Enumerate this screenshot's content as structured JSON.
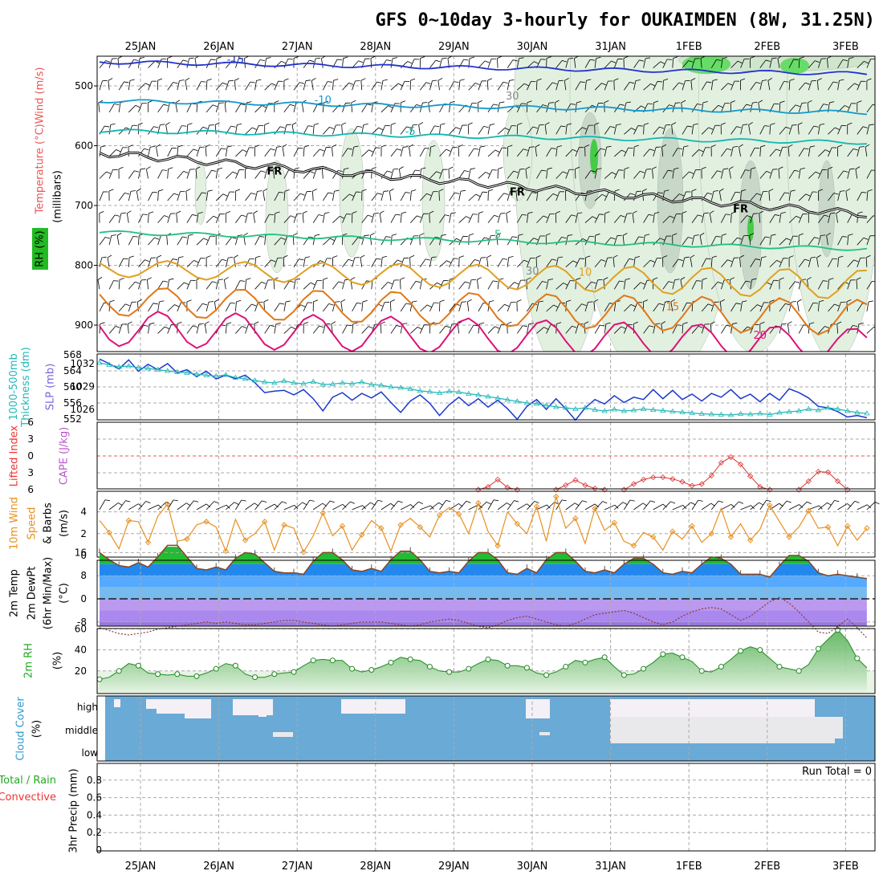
{
  "chart_data": {
    "type": "meteogram",
    "title": "GFS 0~10day 3-hourly for OUKAIMDEN (8W, 31.25N)",
    "dates": [
      "25JAN",
      "26JAN",
      "27JAN",
      "28JAN",
      "29JAN",
      "30JAN",
      "31JAN",
      "1FEB",
      "2FEB",
      "3FEB"
    ],
    "panels": [
      {
        "id": "upper_air",
        "ylabel": [
          "RH (%)",
          "Temperature (°C)",
          "Wind (m/s)",
          "(millibars)"
        ],
        "ylabel_colors": [
          "#22bb22",
          "#ee5555",
          "#000000",
          "#000000"
        ],
        "y_ticks": [
          "500",
          "600",
          "700",
          "800",
          "900"
        ],
        "freezing_label": "FR",
        "isotherms": [
          {
            "label": "-15",
            "color": "#2233cc"
          },
          {
            "label": "-10",
            "color": "#1199cc"
          },
          {
            "label": "-5",
            "color": "#11b7b0"
          },
          {
            "label": "5",
            "color": "#22c080"
          },
          {
            "label": "10",
            "color": "#e0a020"
          },
          {
            "label": "15",
            "color": "#e07818"
          },
          {
            "label": "20",
            "color": "#dd1177"
          }
        ],
        "rh_contour_label": "30"
      },
      {
        "id": "slp_thickness",
        "ylabel": [
          "1000-500mb",
          "Thickness (dm)",
          "SLP (mb)"
        ],
        "thickness_ticks": [
          "568",
          "564",
          "560",
          "556",
          "552"
        ],
        "slp_ticks": [
          "1032",
          "1029",
          "1026"
        ],
        "series": [
          {
            "name": "SLP",
            "color": "#1a3acc",
            "values": [
              1032.6,
              1032.0,
              1031.3,
              1032.5,
              1031.0,
              1031.9,
              1031.2,
              1032.0,
              1030.8,
              1031.2,
              1030.3,
              1031.0,
              1030.0,
              1030.5,
              1030.0,
              1030.5,
              1029.5,
              1028.2,
              1028.4,
              1028.5,
              1027.9,
              1028.6,
              1027.4,
              1025.8,
              1027.6,
              1028.2,
              1027.2,
              1028.1,
              1027.5,
              1028.3,
              1026.9,
              1025.6,
              1027.1,
              1027.9,
              1026.8,
              1025.2,
              1026.6,
              1027.6,
              1026.5,
              1027.4,
              1026.3,
              1027.2,
              1026.1,
              1024.7,
              1026.4,
              1027.3,
              1026.0,
              1027.4,
              1026.1,
              1024.6,
              1026.2,
              1027.3,
              1026.7,
              1027.8,
              1026.9,
              1027.6,
              1027.3,
              1028.6,
              1027.4,
              1028.5,
              1027.3,
              1028.0,
              1027.1,
              1028.1,
              1027.6,
              1028.6,
              1027.4,
              1028.0,
              1027.0,
              1028.1,
              1027.2,
              1028.7,
              1028.2,
              1027.5,
              1026.4,
              1026.2,
              1025.7,
              1025.0,
              1025.2,
              1024.9
            ]
          },
          {
            "name": "Thickness",
            "color": "#22b8b8",
            "values": [
              566.0,
              565.5,
              565.0,
              565.2,
              564.8,
              564.6,
              564.3,
              564.0,
              563.7,
              563.5,
              563.2,
              562.9,
              562.7,
              563.0,
              562.3,
              562.0,
              561.6,
              561.2,
              561.0,
              561.5,
              561.0,
              560.8,
              561.3,
              560.6,
              560.7,
              561.0,
              560.8,
              561.2,
              560.6,
              560.4,
              560.0,
              559.8,
              559.5,
              559.0,
              558.8,
              558.5,
              558.9,
              558.7,
              558.3,
              558.0,
              557.6,
              557.2,
              556.8,
              556.4,
              556.0,
              555.8,
              555.4,
              555.0,
              554.8,
              554.5,
              554.8,
              554.3,
              554.0,
              554.4,
              554.0,
              554.2,
              554.5,
              554.3,
              554.1,
              553.9,
              553.7,
              553.5,
              553.3,
              553.2,
              553.1,
              553.0,
              553.3,
              553.2,
              553.4,
              553.1,
              553.6,
              553.8,
              554.0,
              554.5,
              554.2,
              554.8,
              554.5,
              554.0,
              553.6,
              553.4
            ]
          }
        ]
      },
      {
        "id": "instability",
        "ylabel": [
          "Lifted Index",
          "CAPE (J/kg)"
        ],
        "ylabel_colors": [
          "#ee3333",
          "#bb55cc"
        ],
        "li_ticks": [
          "-6",
          "-3",
          "0",
          "3",
          "6"
        ],
        "series": [
          {
            "name": "Lifted Index",
            "color": "#dd3333",
            "segments": [
              {
                "start_index": 39,
                "values": [
                  6.0,
                  5.5,
                  4.2,
                  5.6,
                  6.0
                ]
              },
              {
                "start_index": 47,
                "values": [
                  6.0,
                  5.2,
                  4.3,
                  5.2,
                  5.8,
                  6.0
                ]
              },
              {
                "start_index": 54,
                "values": [
                  6.0,
                  5.0,
                  4.2,
                  3.8,
                  3.8,
                  4.1,
                  4.6,
                  5.3,
                  5.0,
                  3.5,
                  1.2,
                  0.2,
                  1.5,
                  3.6,
                  5.5,
                  6.0
                ]
              },
              {
                "start_index": 72,
                "values": [
                  6.0,
                  4.5,
                  2.8,
                  2.9,
                  4.5,
                  6.0
                ]
              }
            ]
          }
        ]
      },
      {
        "id": "wind10m",
        "ylabel": [
          "10m Wind",
          "Speed",
          "& Barbs",
          "(m/s)"
        ],
        "y_ticks": [
          "0",
          "2",
          "4"
        ],
        "series": [
          {
            "name": "10m Wind Speed",
            "color": "#e89020",
            "values": [
              3.2,
              2.1,
              0.6,
              3.2,
              3.1,
              1.2,
              3.6,
              4.7,
              1.3,
              1.5,
              2.8,
              3.1,
              2.6,
              0.4,
              3.3,
              1.4,
              2.0,
              3.1,
              0.5,
              2.8,
              2.5,
              0.3,
              1.8,
              3.9,
              1.8,
              2.7,
              0.5,
              1.9,
              3.2,
              2.5,
              0.4,
              2.8,
              3.4,
              2.6,
              1.7,
              3.7,
              4.4,
              3.8,
              2.0,
              4.8,
              2.2,
              0.9,
              4.0,
              2.9,
              2.0,
              4.5,
              1.3,
              5.4,
              2.5,
              3.4,
              1.1,
              4.3,
              2.3,
              3.0,
              1.3,
              0.9,
              2.1,
              1.7,
              0.5,
              2.2,
              1.5,
              2.7,
              1.2,
              2.0,
              4.3,
              1.7,
              2.9,
              1.4,
              2.4,
              4.6,
              3.1,
              1.7,
              2.6,
              4.1,
              2.5,
              2.6,
              0.9,
              2.7,
              1.4,
              2.5
            ]
          }
        ]
      },
      {
        "id": "temp2m",
        "ylabel": [
          "2m Temp",
          "2m DewPt",
          "(6hr Min/Max)",
          "(°C)"
        ],
        "y_ticks": [
          "16",
          "8",
          "0",
          "-8"
        ],
        "series": [
          {
            "name": "2m Temp",
            "color": "#884422",
            "values": [
              16.0,
              13.5,
              11.5,
              11.0,
              12.5,
              11.0,
              14.5,
              18.5,
              18.5,
              14.5,
              10.5,
              10.0,
              11.0,
              10.0,
              14.0,
              16.0,
              15.5,
              12.5,
              9.5,
              9.0,
              9.0,
              8.5,
              13.0,
              16.0,
              16.0,
              13.5,
              10.0,
              9.5,
              10.5,
              9.5,
              13.5,
              16.5,
              16.5,
              13.5,
              9.5,
              9.0,
              9.5,
              9.0,
              13.0,
              16.0,
              16.0,
              13.5,
              9.0,
              8.5,
              10.5,
              9.0,
              13.5,
              16.0,
              16.0,
              13.0,
              9.5,
              9.0,
              10.0,
              9.0,
              12.0,
              14.0,
              14.0,
              12.0,
              9.0,
              8.5,
              9.5,
              9.0,
              12.0,
              14.5,
              14.0,
              12.0,
              8.5,
              8.5,
              8.5,
              7.5,
              11.5,
              15.0,
              15.0,
              13.0,
              9.0,
              8.0,
              8.5,
              8.0,
              7.5,
              7.0
            ]
          },
          {
            "name": "2m DewPt",
            "color": "#8a3a3a",
            "values": [
              -10.0,
              -11.0,
              -12.0,
              -12.5,
              -12.0,
              -11.5,
              -10.5,
              -10.0,
              -9.5,
              -9.0,
              -8.5,
              -8.0,
              -8.5,
              -8.0,
              -8.5,
              -9.0,
              -9.0,
              -8.5,
              -8.0,
              -7.5,
              -7.5,
              -8.0,
              -8.5,
              -9.0,
              -9.5,
              -9.0,
              -8.5,
              -8.0,
              -8.0,
              -8.0,
              -8.5,
              -9.0,
              -9.5,
              -9.0,
              -8.0,
              -7.5,
              -7.0,
              -7.5,
              -8.5,
              -9.5,
              -10.0,
              -9.0,
              -7.5,
              -6.5,
              -6.0,
              -7.0,
              -8.0,
              -9.0,
              -9.5,
              -8.5,
              -7.0,
              -5.5,
              -5.0,
              -4.5,
              -4.0,
              -5.0,
              -6.5,
              -8.0,
              -9.0,
              -8.0,
              -6.0,
              -4.5,
              -3.5,
              -3.0,
              -3.5,
              -5.5,
              -7.5,
              -6.0,
              -3.5,
              -1.0,
              0.5,
              -1.5,
              -4.5,
              -8.0,
              -11.5,
              -12.0,
              -9.5,
              -7.0,
              -10.0,
              -13.5
            ]
          }
        ]
      },
      {
        "id": "rh2m",
        "ylabel": [
          "2m RH",
          "(%)"
        ],
        "y_ticks": [
          "20",
          "40",
          "60"
        ],
        "series": [
          {
            "name": "2m RH",
            "color": "#228822",
            "values": [
              12,
              14,
              20,
              27,
              25,
              18,
              17,
              16,
              17,
              15,
              15,
              18,
              22,
              27,
              25,
              17,
              14,
              14,
              17,
              18,
              19,
              25,
              30,
              31,
              30,
              30,
              22,
              19,
              21,
              24,
              28,
              33,
              31,
              30,
              24,
              20,
              19,
              19,
              22,
              27,
              31,
              30,
              25,
              25,
              23,
              18,
              16,
              19,
              24,
              30,
              28,
              31,
              33,
              24,
              16,
              17,
              22,
              28,
              36,
              37,
              33,
              29,
              20,
              19,
              24,
              31,
              39,
              43,
              40,
              32,
              24,
              22,
              20,
              26,
              41,
              50,
              59,
              49,
              32,
              23
            ]
          }
        ]
      },
      {
        "id": "cloud",
        "ylabel": [
          "Cloud Cover",
          "(%)"
        ],
        "levels": [
          "high",
          "middle",
          "low"
        ],
        "colors": {
          "clear": "#6aaad6",
          "cloud": "#f4f0f6"
        }
      },
      {
        "id": "precip",
        "ylabel": [
          "Total / Rain",
          "Convective",
          "3hr Precip (mm)"
        ],
        "ylabel_colors": [
          "#22aa22",
          "#ee3333",
          "#000000"
        ],
        "y_ticks": [
          "0",
          "0.2",
          "0.4",
          "0.6",
          "0.8"
        ],
        "run_total_label": "Run Total = 0",
        "values": []
      }
    ]
  }
}
